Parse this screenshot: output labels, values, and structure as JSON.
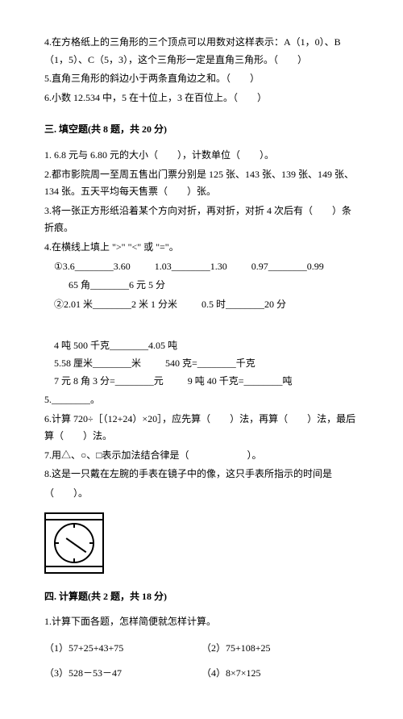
{
  "intro": {
    "q4": "4.在方格纸上的三角形的三个顶点可以用数对这样表示：A（1，0）、B（1，5）、C（5，3），这个三角形一定是直角三角形。（　　）",
    "q5": "5.直角三角形的斜边小于两条直角边之和。（　　）",
    "q6": "6.小数 12.534 中，5 在十位上，3 在百位上。（　　）"
  },
  "section3": {
    "title": "三. 填空题(共 8 题，共 20 分)",
    "q1": "1. 6.8 元与 6.80 元的大小（　　），计数单位（　　）。",
    "q2": "2.都市影院周一至周五售出门票分别是 125 张、143 张、139 张、149 张、134 张。五天平均每天售票（　　）张。",
    "q3": "3.将一张正方形纸沿着某个方向对折，再对折，对折 4 次后有（　　）条折痕。",
    "q4_title": "4.在横线上填上 \">\" \"<\" 或 \"=\"。",
    "q4_row1": {
      "a": "①3.6________3.60",
      "b": "1.03________1.30",
      "c": "0.97________0.99"
    },
    "q4_row1b": "65 角________6 元 5 分",
    "q4_row2": {
      "a": "②2.01 米________2 米 1 分米",
      "b": "0.5 时________20 分",
      "c": "4 吨 500 千克________4.05 吨"
    },
    "q4_row3": {
      "a": "5.58 厘米________米",
      "b": "540 克=________千克"
    },
    "q4_row4": {
      "a": "7 元 8 角 3 分=________元",
      "b": "9 吨 40 千克=________吨"
    },
    "q5": "5.________。",
    "q6": "6.计算 720÷［（12+24）×20］，应先算（　　）法，再算（　　）法，最后算（　　）法。",
    "q7": "7.用△、○、□表示加法结合律是（　　　　　　）。",
    "q8": "8.这是一只戴在左腕的手表在镜子中的像，这只手表所指示的时间是",
    "q8b": "（　　）。"
  },
  "section4": {
    "title": "四. 计算题(共 2 题，共 18 分)",
    "q1": "1.计算下面各题，怎样简便就怎样计算。",
    "items": {
      "a": "（1）57+25+43+75",
      "b": "（2）75+108+25",
      "c": "（3）528－53－47",
      "d": "（4）8×7×125"
    }
  }
}
